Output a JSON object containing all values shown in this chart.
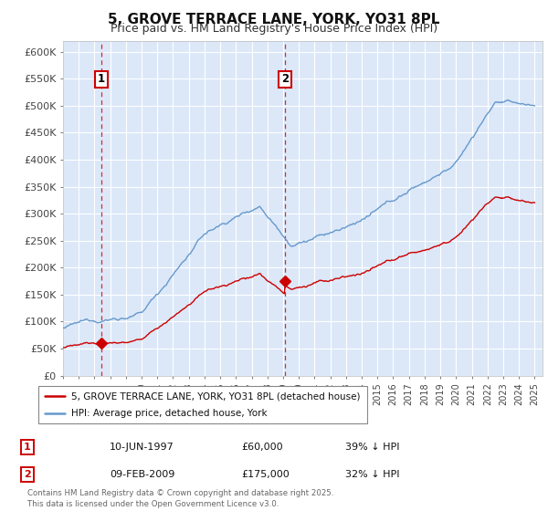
{
  "title": "5, GROVE TERRACE LANE, YORK, YO31 8PL",
  "subtitle": "Price paid vs. HM Land Registry's House Price Index (HPI)",
  "ylim": [
    0,
    620000
  ],
  "yticks": [
    0,
    50000,
    100000,
    150000,
    200000,
    250000,
    300000,
    350000,
    400000,
    450000,
    500000,
    550000,
    600000
  ],
  "ytick_labels": [
    "£0",
    "£50K",
    "£100K",
    "£150K",
    "£200K",
    "£250K",
    "£300K",
    "£350K",
    "£400K",
    "£450K",
    "£500K",
    "£550K",
    "£600K"
  ],
  "plot_bg_color": "#dce8f8",
  "grid_color": "#ffffff",
  "hpi_color": "#6699cc",
  "price_color": "#cc0000",
  "purchase1_year": 1997.44,
  "purchase1_price": 60000,
  "purchase2_year": 2009.11,
  "purchase2_price": 175000,
  "legend_entries": [
    "5, GROVE TERRACE LANE, YORK, YO31 8PL (detached house)",
    "HPI: Average price, detached house, York"
  ],
  "table_rows": [
    {
      "num": "1",
      "date": "10-JUN-1997",
      "price": "£60,000",
      "pct": "39% ↓ HPI"
    },
    {
      "num": "2",
      "date": "09-FEB-2009",
      "price": "£175,000",
      "pct": "32% ↓ HPI"
    }
  ],
  "footer": "Contains HM Land Registry data © Crown copyright and database right 2025.\nThis data is licensed under the Open Government Licence v3.0.",
  "title_fontsize": 11,
  "subtitle_fontsize": 9
}
